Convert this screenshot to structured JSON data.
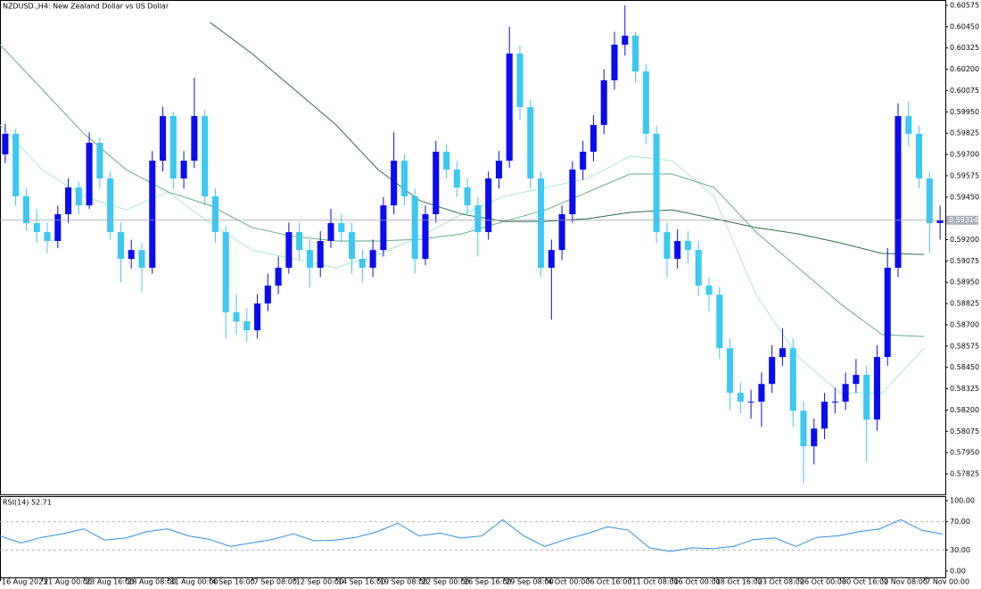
{
  "chart_data": [
    {
      "type": "candlestick",
      "title": "NZDUSD.,H4: New Zealand Dollar vs US Dollar",
      "x_labels": [
        "16 Aug 2023",
        "21 Aug 00:00",
        "23 Aug 16:00",
        "28 Aug 08:00",
        "31 Aug 00:00",
        "4 Sep 16:00",
        "7 Sep 08:00",
        "12 Sep 00:00",
        "14 Sep 16:00",
        "19 Sep 08:00",
        "22 Sep 00:00",
        "26 Sep 16:00",
        "29 Sep 08:00",
        "4 Oct 00:00",
        "6 Oct 16:00",
        "11 Oct 08:00",
        "16 Oct 00:00",
        "18 Oct 16:00",
        "23 Oct 08:00",
        "26 Oct 00:00",
        "30 Oct 16:00",
        "2 Nov 08:00",
        "7 Nov 00:00"
      ],
      "ohlc": [
        [
          0.597,
          0.5988,
          0.5965,
          0.59821
        ],
        [
          0.59821,
          0.5985,
          0.594,
          0.59454
        ],
        [
          0.59454,
          0.595,
          0.5925,
          0.59297
        ],
        [
          0.59297,
          0.5938,
          0.5918,
          0.59244
        ],
        [
          0.59244,
          0.593,
          0.5912,
          0.59192
        ],
        [
          0.59192,
          0.594,
          0.5915,
          0.59349
        ],
        [
          0.59349,
          0.5956,
          0.593,
          0.59506
        ],
        [
          0.59506,
          0.5954,
          0.5935,
          0.59401
        ],
        [
          0.59401,
          0.5983,
          0.5938,
          0.59768
        ],
        [
          0.59768,
          0.598,
          0.595,
          0.59559
        ],
        [
          0.59559,
          0.596,
          0.592,
          0.59244
        ],
        [
          0.59244,
          0.593,
          0.5895,
          0.59087
        ],
        [
          0.59087,
          0.592,
          0.5903,
          0.59139
        ],
        [
          0.59139,
          0.5918,
          0.5889,
          0.59035
        ],
        [
          0.59035,
          0.5972,
          0.59,
          0.59663
        ],
        [
          0.59663,
          0.5998,
          0.596,
          0.59925
        ],
        [
          0.59925,
          0.5995,
          0.595,
          0.59559
        ],
        [
          0.59559,
          0.5972,
          0.595,
          0.59663
        ],
        [
          0.59663,
          0.6015,
          0.5962,
          0.59925
        ],
        [
          0.59925,
          0.5996,
          0.594,
          0.59454
        ],
        [
          0.59454,
          0.595,
          0.5918,
          0.59244
        ],
        [
          0.59244,
          0.5928,
          0.5862,
          0.58773
        ],
        [
          0.58773,
          0.5888,
          0.5864,
          0.5872
        ],
        [
          0.5872,
          0.588,
          0.586,
          0.58668
        ],
        [
          0.58668,
          0.5888,
          0.5862,
          0.58825
        ],
        [
          0.58825,
          0.59,
          0.5878,
          0.5893
        ],
        [
          0.5893,
          0.591,
          0.5888,
          0.59035
        ],
        [
          0.59035,
          0.593,
          0.59,
          0.59244
        ],
        [
          0.59244,
          0.593,
          0.5908,
          0.59139
        ],
        [
          0.59139,
          0.592,
          0.5892,
          0.59035
        ],
        [
          0.59035,
          0.5925,
          0.5898,
          0.59192
        ],
        [
          0.59192,
          0.5938,
          0.5915,
          0.59297
        ],
        [
          0.59297,
          0.5935,
          0.5918,
          0.59244
        ],
        [
          0.59244,
          0.593,
          0.59,
          0.59087
        ],
        [
          0.59087,
          0.5914,
          0.5895,
          0.59035
        ],
        [
          0.59035,
          0.592,
          0.5898,
          0.59139
        ],
        [
          0.59139,
          0.5945,
          0.591,
          0.59401
        ],
        [
          0.59401,
          0.5983,
          0.5935,
          0.59663
        ],
        [
          0.59663,
          0.597,
          0.594,
          0.59454
        ],
        [
          0.59454,
          0.595,
          0.59,
          0.59087
        ],
        [
          0.59087,
          0.594,
          0.5905,
          0.59349
        ],
        [
          0.59349,
          0.5978,
          0.593,
          0.59716
        ],
        [
          0.59716,
          0.5976,
          0.5956,
          0.59611
        ],
        [
          0.59611,
          0.5966,
          0.5945,
          0.59506
        ],
        [
          0.59506,
          0.5956,
          0.5935,
          0.59401
        ],
        [
          0.59401,
          0.5945,
          0.591,
          0.59244
        ],
        [
          0.59244,
          0.596,
          0.592,
          0.59559
        ],
        [
          0.59559,
          0.5972,
          0.595,
          0.59663
        ],
        [
          0.59663,
          0.6045,
          0.5962,
          0.60292
        ],
        [
          0.60292,
          0.6034,
          0.599,
          0.59978
        ],
        [
          0.59978,
          0.6002,
          0.595,
          0.59559
        ],
        [
          0.59559,
          0.596,
          0.5898,
          0.59035
        ],
        [
          0.59035,
          0.592,
          0.5873,
          0.59139
        ],
        [
          0.59139,
          0.594,
          0.5908,
          0.59349
        ],
        [
          0.59349,
          0.5966,
          0.593,
          0.59611
        ],
        [
          0.59611,
          0.5978,
          0.5955,
          0.59716
        ],
        [
          0.59716,
          0.5993,
          0.5966,
          0.59873
        ],
        [
          0.59873,
          0.602,
          0.5982,
          0.60135
        ],
        [
          0.60135,
          0.6042,
          0.6008,
          0.60344
        ],
        [
          0.60344,
          0.60575,
          0.6028,
          0.60397
        ],
        [
          0.60397,
          0.6042,
          0.6012,
          0.60187
        ],
        [
          0.60187,
          0.6023,
          0.5976,
          0.59821
        ],
        [
          0.59821,
          0.5987,
          0.5918,
          0.59244
        ],
        [
          0.59244,
          0.593,
          0.5898,
          0.59087
        ],
        [
          0.59087,
          0.5926,
          0.5903,
          0.59192
        ],
        [
          0.59192,
          0.5925,
          0.5906,
          0.59139
        ],
        [
          0.59139,
          0.5919,
          0.5887,
          0.5893
        ],
        [
          0.5893,
          0.5898,
          0.5878,
          0.58877
        ],
        [
          0.58877,
          0.5892,
          0.585,
          0.58563
        ],
        [
          0.58563,
          0.5862,
          0.582,
          0.58301
        ],
        [
          0.58301,
          0.5836,
          0.5818,
          0.58249
        ],
        [
          0.58249,
          0.5832,
          0.5815,
          0.58249
        ],
        [
          0.58249,
          0.5842,
          0.581,
          0.58353
        ],
        [
          0.58353,
          0.5858,
          0.583,
          0.58511
        ],
        [
          0.58511,
          0.5868,
          0.5846,
          0.58563
        ],
        [
          0.58563,
          0.5862,
          0.581,
          0.58196
        ],
        [
          0.58196,
          0.5825,
          0.5777,
          0.57987
        ],
        [
          0.57987,
          0.5815,
          0.5788,
          0.58091
        ],
        [
          0.58091,
          0.583,
          0.5803,
          0.58249
        ],
        [
          0.58249,
          0.5833,
          0.5818,
          0.58249
        ],
        [
          0.58249,
          0.5842,
          0.582,
          0.58353
        ],
        [
          0.58353,
          0.585,
          0.583,
          0.58406
        ],
        [
          0.58406,
          0.5846,
          0.579,
          0.58144
        ],
        [
          0.58144,
          0.5858,
          0.5808,
          0.58511
        ],
        [
          0.58511,
          0.5915,
          0.5846,
          0.59035
        ],
        [
          0.59035,
          0.6,
          0.5898,
          0.59925
        ],
        [
          0.59925,
          0.6001,
          0.5975,
          0.59821
        ],
        [
          0.59821,
          0.5987,
          0.595,
          0.59559
        ],
        [
          0.59559,
          0.596,
          0.5912,
          0.59297
        ],
        [
          0.59297,
          0.594,
          0.592,
          0.59314
        ]
      ],
      "up_color": "#0c0cf0",
      "down_color": "#3cc8f0",
      "moving_averages": [
        {
          "color": "#a8e8cc",
          "values": [
            0.59873,
            0.59611,
            0.59454,
            0.59375,
            0.5948,
            0.59297,
            0.59139,
            0.59087,
            0.59035,
            0.59113,
            0.59218,
            0.59349,
            0.59454,
            0.59506,
            0.59559,
            0.5969,
            0.59663,
            0.59454,
            0.58877,
            0.58511,
            0.58301,
            0.58301,
            0.58563
          ]
        },
        {
          "color": "#5fae80",
          "values": [
            0.60344,
            0.60083,
            0.59821,
            0.59611,
            0.5948,
            0.59401,
            0.59271,
            0.59218,
            0.59192,
            0.59192,
            0.59202,
            0.59234,
            0.59307,
            0.59375,
            0.5948,
            0.59585,
            0.59585,
            0.59506,
            0.59244,
            0.59035,
            0.58825,
            0.58642,
            0.58631
          ]
        },
        {
          "color": "#2e6e48",
          "values": [
            null,
            null,
            null,
            null,
            null,
            0.60475,
            0.60292,
            0.60083,
            0.59873,
            0.59611,
            0.59428,
            0.59349,
            0.59307,
            0.59307,
            0.59323,
            0.5936,
            0.59375,
            0.59323,
            0.59271,
            0.59234,
            0.59181,
            0.59119,
            0.59113
          ]
        }
      ],
      "ylim": [
        0.5771,
        0.60601
      ],
      "yticks": [
        {
          "value": 0.60575,
          "label": "0.60575"
        },
        {
          "value": 0.6045,
          "label": "0.60450"
        },
        {
          "value": 0.60325,
          "label": "0.60325"
        },
        {
          "value": 0.602,
          "label": "0.60200"
        },
        {
          "value": 0.60075,
          "label": "0.60075"
        },
        {
          "value": 0.5995,
          "label": "0.59950"
        },
        {
          "value": 0.59825,
          "label": "0.59825"
        },
        {
          "value": 0.597,
          "label": "0.59700"
        },
        {
          "value": 0.59575,
          "label": "0.59575"
        },
        {
          "value": 0.5945,
          "label": "0.59450"
        },
        {
          "value": 0.592,
          "label": "0.59200"
        },
        {
          "value": 0.59075,
          "label": "0.59075"
        },
        {
          "value": 0.5895,
          "label": "0.58950"
        },
        {
          "value": 0.58825,
          "label": "0.58825"
        },
        {
          "value": 0.587,
          "label": "0.58700"
        },
        {
          "value": 0.58575,
          "label": "0.58575"
        },
        {
          "value": 0.5845,
          "label": "0.58450"
        },
        {
          "value": 0.58325,
          "label": "0.58325"
        },
        {
          "value": 0.582,
          "label": "0.58200"
        },
        {
          "value": 0.58075,
          "label": "0.58075"
        },
        {
          "value": 0.5795,
          "label": "0.57950"
        },
        {
          "value": 0.57825,
          "label": "0.57825"
        }
      ],
      "last_price": 0.59314
    },
    {
      "type": "line",
      "title": "RSI(14) 52.71",
      "values": [
        50,
        40,
        48,
        53,
        60,
        44,
        47,
        56,
        60,
        50,
        45,
        35,
        40,
        45,
        53,
        43,
        44,
        48,
        56,
        68,
        50,
        54,
        47,
        50,
        73,
        50,
        35,
        45,
        53,
        63,
        58,
        33,
        28,
        33,
        32,
        35,
        45,
        47,
        35,
        48,
        50,
        56,
        60,
        73,
        58,
        52.71
      ],
      "color": "#2e8fe0",
      "ylim": [
        -8.86,
        105.06
      ],
      "yticks": [
        {
          "value": 100,
          "label": "100.00"
        },
        {
          "value": 70,
          "label": "70.00"
        },
        {
          "value": 30,
          "label": "30.00"
        },
        {
          "value": 0,
          "label": "0.00"
        }
      ],
      "levels": [
        70,
        30
      ]
    }
  ]
}
